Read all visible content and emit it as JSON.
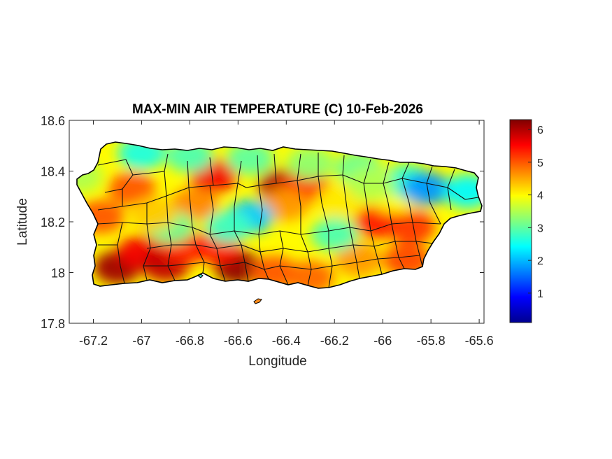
{
  "chart_data": {
    "type": "heatmap",
    "title": "MAX-MIN AIR TEMPERATURE (C) 10-Feb-2026",
    "xlabel": "Longitude",
    "ylabel": "Latitude",
    "xlim": [
      -67.3,
      -65.58
    ],
    "ylim": [
      17.8,
      18.6
    ],
    "xticks": [
      -67.2,
      -67,
      -66.8,
      -66.6,
      -66.4,
      -66.2,
      -66,
      -65.8,
      -65.6
    ],
    "xtick_labels": [
      "-67.2",
      "-67",
      "-66.8",
      "-66.6",
      "-66.4",
      "-66.2",
      "-66",
      "-65.8",
      "-65.6"
    ],
    "yticks": [
      17.8,
      18,
      18.2,
      18.4,
      18.6
    ],
    "ytick_labels": [
      "17.8",
      "18",
      "18.2",
      "18.4",
      "18.6"
    ],
    "colorbar": {
      "colormap": "jet",
      "range": [
        0.1,
        6.3
      ],
      "ticks": [
        1,
        2,
        3,
        4,
        5,
        6
      ],
      "tick_labels": [
        "1",
        "2",
        "3",
        "4",
        "5",
        "6"
      ],
      "placement": "right"
    },
    "field_blobs": [
      {
        "lon": -67.1,
        "lat": 18.02,
        "value": 6.1
      },
      {
        "lon": -67.0,
        "lat": 18.08,
        "value": 5.6
      },
      {
        "lon": -66.9,
        "lat": 18.03,
        "value": 5.9
      },
      {
        "lon": -66.82,
        "lat": 18.1,
        "value": 5.3
      },
      {
        "lon": -66.6,
        "lat": 18.02,
        "value": 6.2
      },
      {
        "lon": -66.68,
        "lat": 18.1,
        "value": 5.4
      },
      {
        "lon": -66.45,
        "lat": 18.0,
        "value": 5.0
      },
      {
        "lon": -66.3,
        "lat": 17.98,
        "value": 4.9
      },
      {
        "lon": -66.1,
        "lat": 18.05,
        "value": 4.6
      },
      {
        "lon": -65.9,
        "lat": 18.05,
        "value": 5.1
      },
      {
        "lon": -66.02,
        "lat": 18.2,
        "value": 5.4
      },
      {
        "lon": -65.88,
        "lat": 18.18,
        "value": 5.2
      },
      {
        "lon": -67.17,
        "lat": 18.22,
        "value": 5.0
      },
      {
        "lon": -67.04,
        "lat": 18.33,
        "value": 5.0
      },
      {
        "lon": -66.7,
        "lat": 18.38,
        "value": 5.6
      },
      {
        "lon": -66.42,
        "lat": 18.34,
        "value": 6.0
      },
      {
        "lon": -66.32,
        "lat": 18.34,
        "value": 5.3
      },
      {
        "lon": -66.78,
        "lat": 18.27,
        "value": 4.7
      },
      {
        "lon": -66.4,
        "lat": 18.27,
        "value": 4.6
      },
      {
        "lon": -66.18,
        "lat": 18.28,
        "value": 4.1
      },
      {
        "lon": -65.95,
        "lat": 18.3,
        "value": 4.0
      },
      {
        "lon": -66.55,
        "lat": 18.22,
        "value": 2.1
      },
      {
        "lon": -66.64,
        "lat": 18.18,
        "value": 2.8
      },
      {
        "lon": -66.2,
        "lat": 18.15,
        "value": 2.9
      },
      {
        "lon": -66.88,
        "lat": 18.18,
        "value": 3.1
      },
      {
        "lon": -67.0,
        "lat": 18.47,
        "value": 2.6
      },
      {
        "lon": -66.8,
        "lat": 18.46,
        "value": 2.9
      },
      {
        "lon": -66.55,
        "lat": 18.45,
        "value": 3.0
      },
      {
        "lon": -66.3,
        "lat": 18.43,
        "value": 3.3
      },
      {
        "lon": -66.1,
        "lat": 18.41,
        "value": 3.1
      },
      {
        "lon": -65.9,
        "lat": 18.36,
        "value": 2.7
      },
      {
        "lon": -65.82,
        "lat": 18.33,
        "value": 1.8
      },
      {
        "lon": -65.65,
        "lat": 18.32,
        "value": 2.4
      },
      {
        "lon": -67.26,
        "lat": 18.38,
        "value": 3.5
      },
      {
        "lon": -66.95,
        "lat": 18.23,
        "value": 4.3
      },
      {
        "lon": -66.05,
        "lat": 18.35,
        "value": 3.5
      }
    ],
    "base_value": 4.0
  }
}
